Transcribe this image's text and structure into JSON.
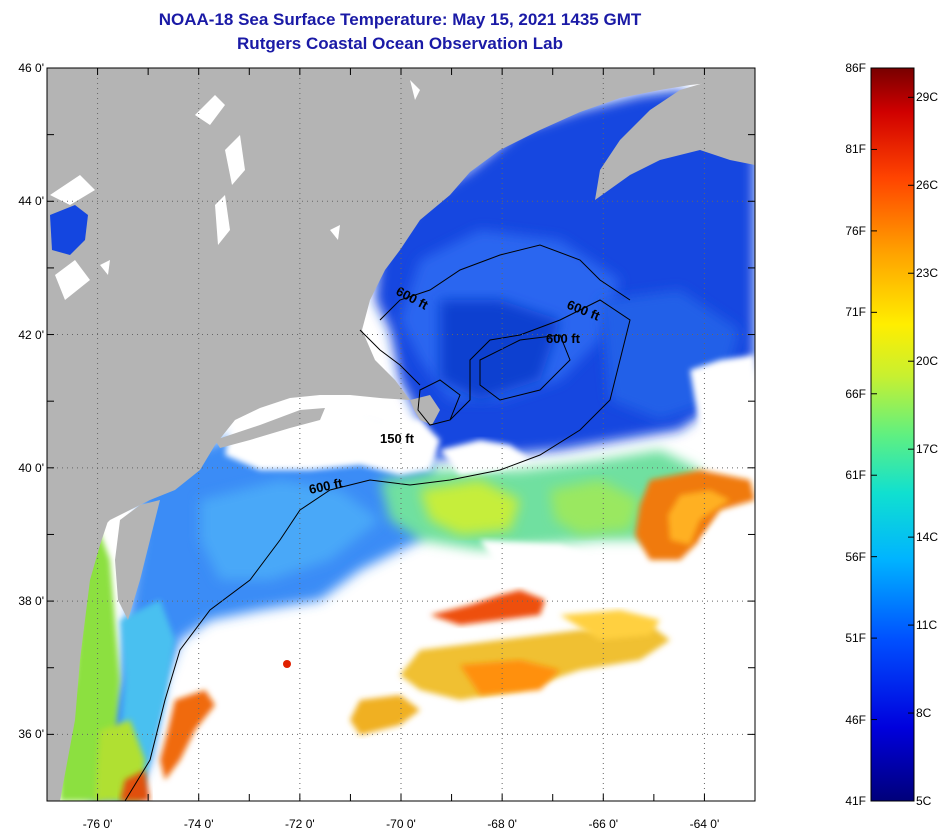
{
  "title": {
    "line1": "NOAA-18 Sea Surface Temperature:  May 15, 2021 1435 GMT",
    "line2": "Rutgers Coastal Ocean Observation Lab"
  },
  "axes": {
    "lat_ticks": [
      {
        "value": 46,
        "label": "46 0'"
      },
      {
        "value": 44,
        "label": "44 0'"
      },
      {
        "value": 42,
        "label": "42 0'"
      },
      {
        "value": 40,
        "label": "40 0'"
      },
      {
        "value": 38,
        "label": "38 0'"
      },
      {
        "value": 36,
        "label": "36 0'"
      }
    ],
    "lon_ticks": [
      {
        "value": -76,
        "label": "-76 0'"
      },
      {
        "value": -74,
        "label": "-74 0'"
      },
      {
        "value": -72,
        "label": "-72 0'"
      },
      {
        "value": -70,
        "label": "-70 0'"
      },
      {
        "value": -68,
        "label": "-68 0'"
      },
      {
        "value": -66,
        "label": "-66 0'"
      },
      {
        "value": -64,
        "label": "-64 0'"
      }
    ],
    "lat_range": [
      35,
      46
    ],
    "lon_range": [
      -77,
      -63
    ],
    "grid": true
  },
  "contours": [
    {
      "label": "600 ft"
    },
    {
      "label": "600 ft"
    },
    {
      "label": "600 ft"
    },
    {
      "label": "150 ft"
    },
    {
      "label": "600 ft"
    }
  ],
  "colorbar": {
    "fahrenheit": [
      "86F",
      "81F",
      "76F",
      "71F",
      "66F",
      "61F",
      "56F",
      "51F",
      "46F",
      "41F"
    ],
    "celsius": [
      "29C",
      "26C",
      "23C",
      "20C",
      "17C",
      "14C",
      "11C",
      "8C",
      "5C"
    ],
    "range_f": [
      41,
      86
    ]
  },
  "colors": {
    "land": "#b4b4b4",
    "cloud": "#ffffff",
    "title": "#1a1aa6"
  }
}
